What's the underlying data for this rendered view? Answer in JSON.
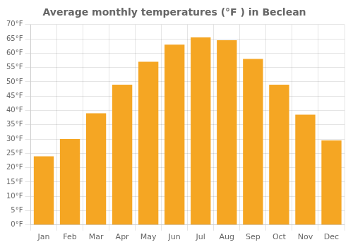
{
  "chart_data": {
    "type": "bar",
    "title": "Average monthly temperatures (°F ) in Beclean",
    "categories": [
      "Jan",
      "Feb",
      "Mar",
      "Apr",
      "May",
      "Jun",
      "Jul",
      "Aug",
      "Sep",
      "Oct",
      "Nov",
      "Dec"
    ],
    "values": [
      24,
      30,
      39,
      49,
      57,
      63,
      65.5,
      64.5,
      58,
      49,
      38.5,
      29.5
    ],
    "color": "#F5A623",
    "ylim": [
      0,
      70
    ],
    "yticks": [
      {
        "value": 0,
        "label": "0°F"
      },
      {
        "value": 5,
        "label": "5°F"
      },
      {
        "value": 10,
        "label": "10°F"
      },
      {
        "value": 15,
        "label": "15°F"
      },
      {
        "value": 20,
        "label": "20°F"
      },
      {
        "value": 25,
        "label": "25°F"
      },
      {
        "value": 30,
        "label": "30°F"
      },
      {
        "value": 35,
        "label": "35°F"
      },
      {
        "value": 40,
        "label": "40°F"
      },
      {
        "value": 45,
        "label": "45°F"
      },
      {
        "value": 50,
        "label": "50°F"
      },
      {
        "value": 55,
        "label": "55°F"
      },
      {
        "value": 60,
        "label": "60°F"
      },
      {
        "value": 65,
        "label": "65°F"
      },
      {
        "value": 70,
        "label": "70°F"
      }
    ],
    "grid": true
  }
}
